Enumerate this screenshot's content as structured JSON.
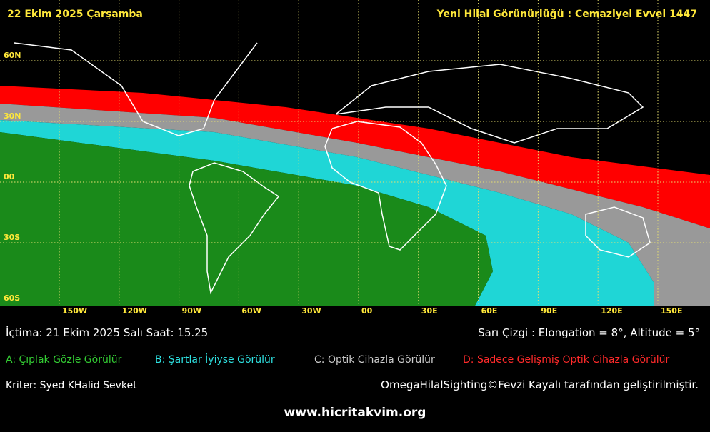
{
  "header": {
    "date": "22 Ekim 2025 Çarşamba",
    "title": "Yeni Hilal Görünürlüğü : Cemaziyel Evvel 1447"
  },
  "map": {
    "lat_labels": [
      "60N",
      "30N",
      "00",
      "30S",
      "60S"
    ],
    "lon_labels": [
      "150W",
      "120W",
      "90W",
      "60W",
      "30W",
      "00",
      "30E",
      "60E",
      "90E",
      "120E",
      "150E"
    ]
  },
  "info": {
    "conjunction": "İçtima: 21 Ekim 2025 Salı Saat: 15.25",
    "line_note": "Sarı Çizgi : Elongation = 8°, Altitude = 5°"
  },
  "legend": [
    "A: Çıplak Gözle Görülür",
    "B: Şartlar İyiyse Görülür",
    "C: Optik Cihazla Görülür",
    "D: Sadece Gelişmiş Optik Cihazla Görülür"
  ],
  "criterion": "Kriter: Syed KHalid Sevket",
  "credit": "OmegaHilalSighting©Fevzi Kayalı tarafından geliştirilmiştir.",
  "url": "www.hicritakvim.org"
}
